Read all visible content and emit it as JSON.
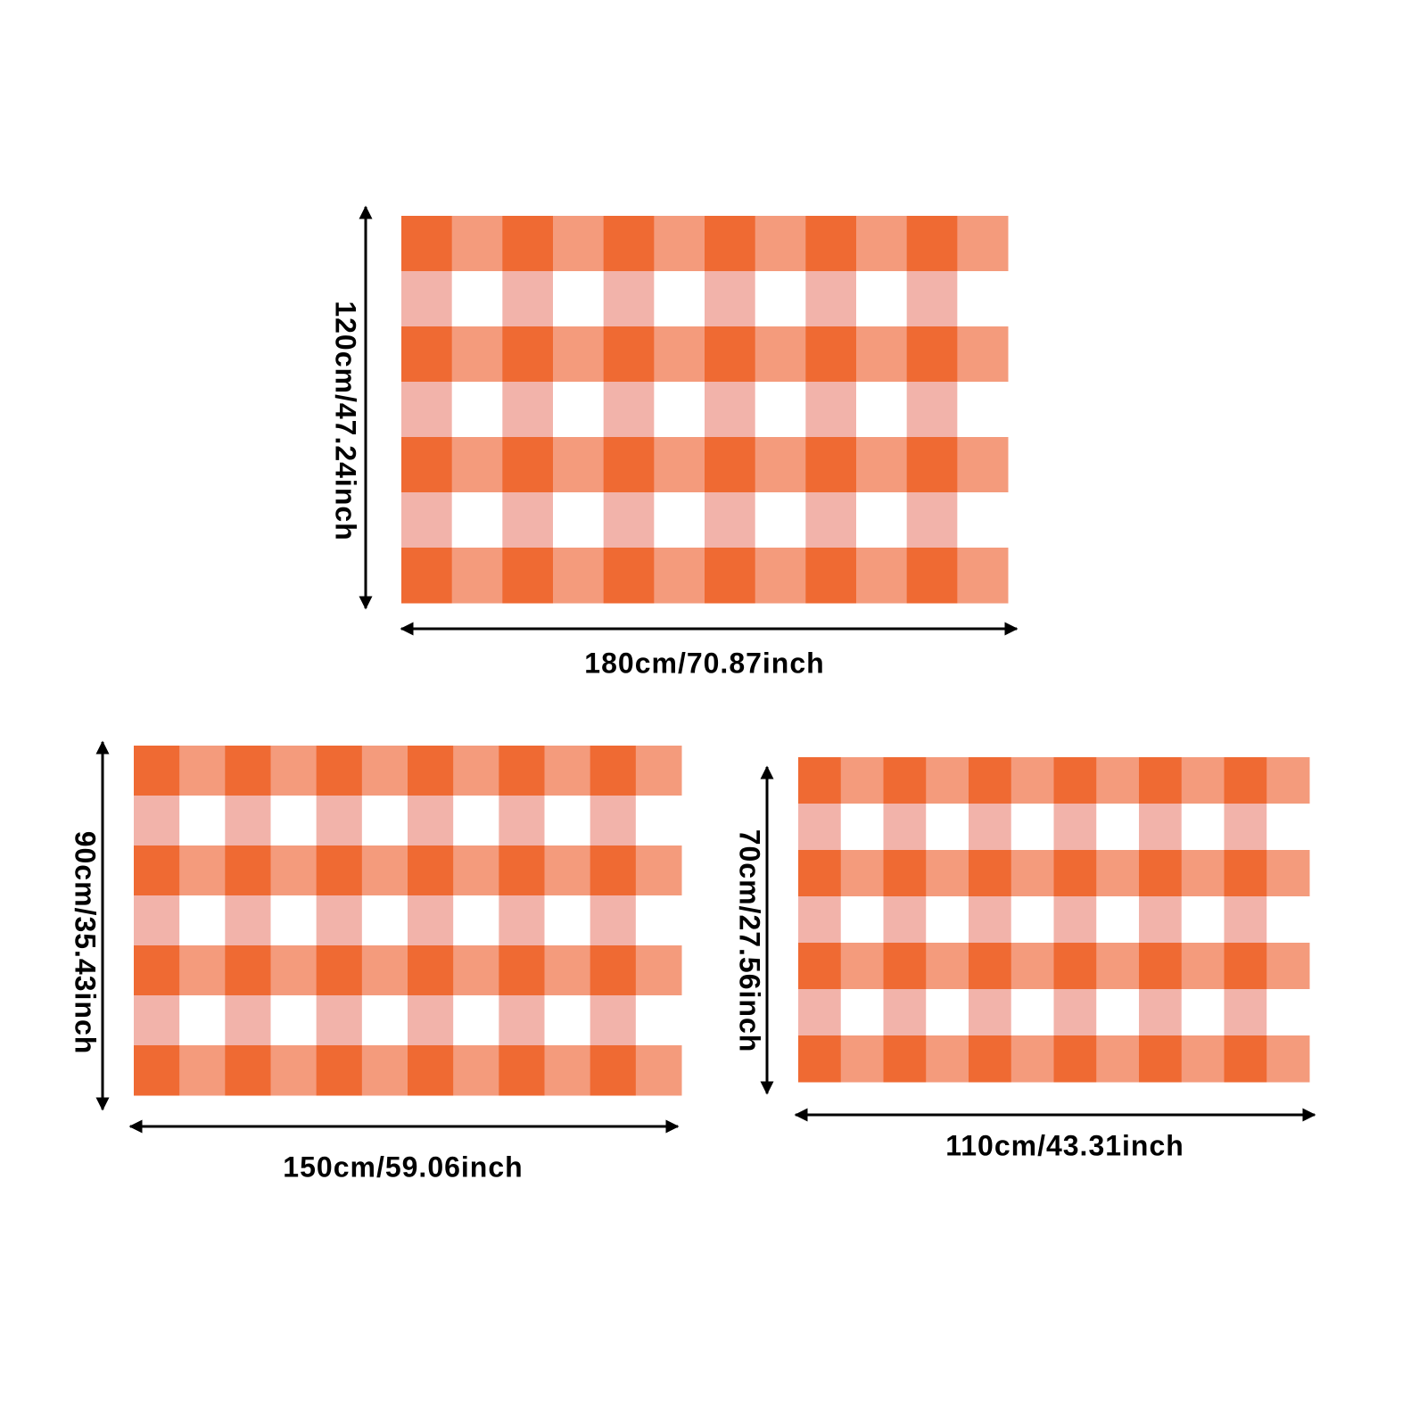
{
  "rugs": [
    {
      "height_label": "120cm/47.24inch",
      "width_label": "180cm/70.87inch"
    },
    {
      "height_label": "90cm/35.43inch",
      "width_label": "150cm/59.06inch"
    },
    {
      "height_label": "70cm/27.56inch",
      "width_label": "110cm/43.31inch"
    }
  ]
}
